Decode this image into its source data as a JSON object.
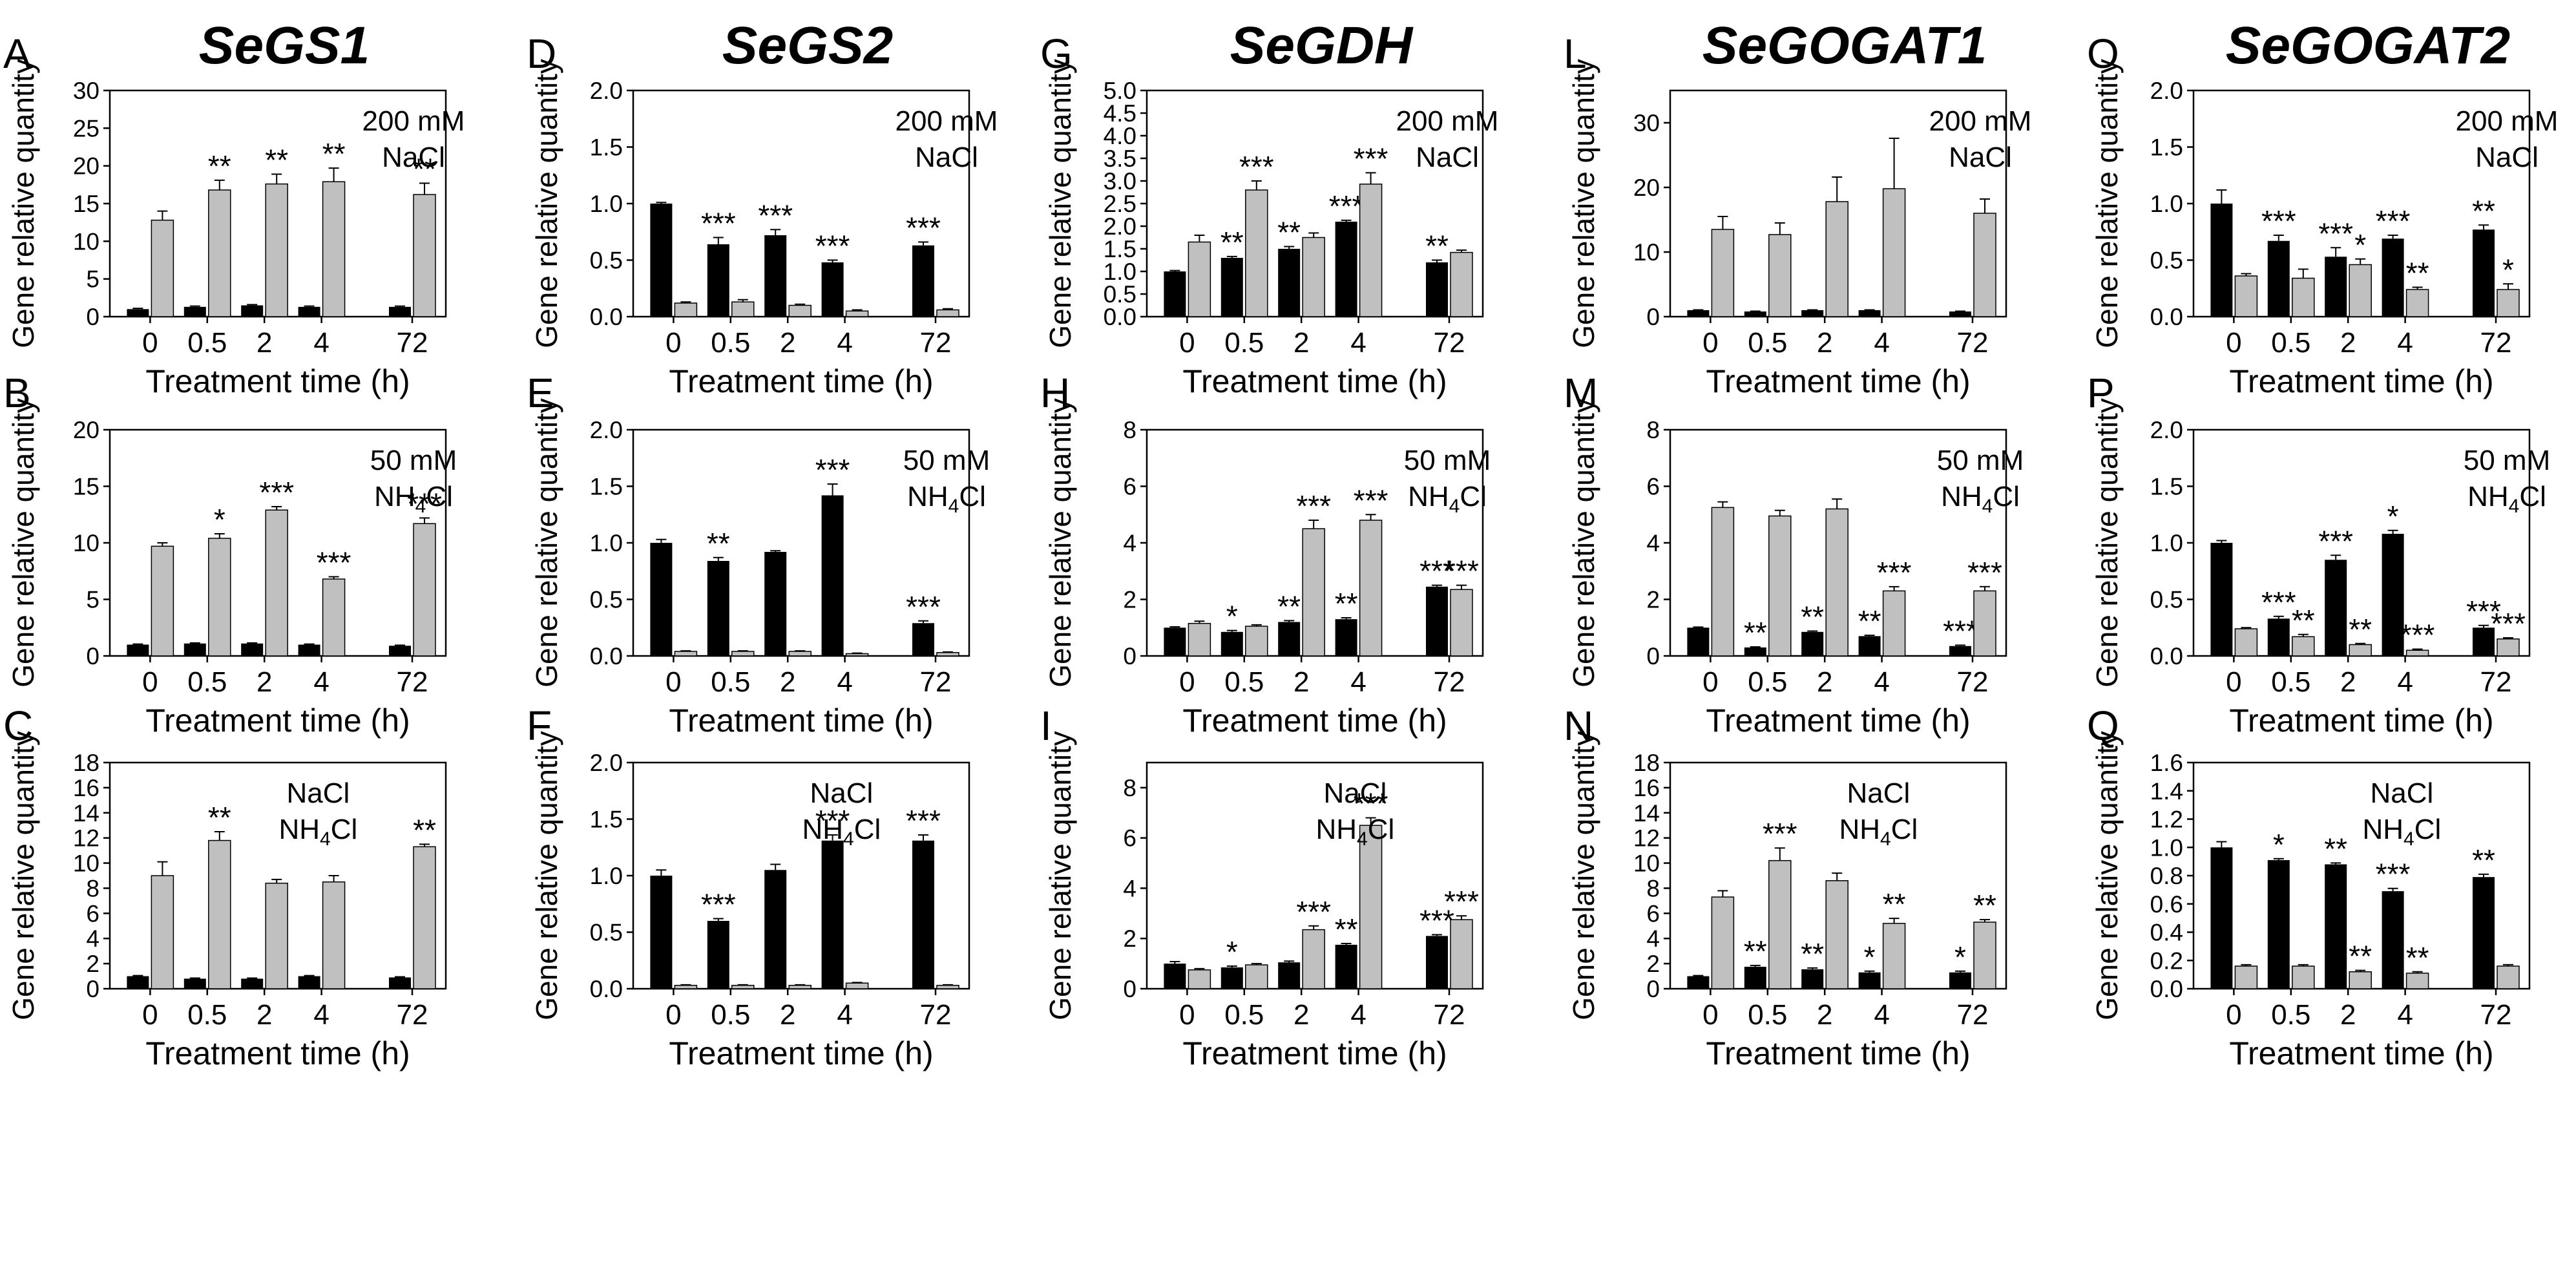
{
  "figure": {
    "x_categories": [
      "0",
      "0.5",
      "2",
      "4",
      "72"
    ],
    "xlabel": "Treatment time (h)",
    "ylabel": "Gene relative quantity",
    "colors": {
      "control": "#000000",
      "treated": "#c0c0c0"
    },
    "genes": [
      "SeGS1",
      "SeGS2",
      "SeGDH",
      "SeGOGAT1",
      "SeGOGAT2"
    ],
    "condition_rows": [
      [
        "200 mM",
        "NaCl"
      ],
      [
        "50 mM",
        "NH4Cl"
      ],
      [
        "NaCl",
        "NH4Cl"
      ]
    ]
  },
  "chart_data": [
    {
      "panel": "A",
      "gene": "SeGS1",
      "condition": "200 mM NaCl",
      "type": "bar",
      "ylim": [
        0,
        30
      ],
      "yticks": [
        0,
        5,
        10,
        15,
        20,
        25,
        30
      ],
      "series": [
        {
          "values": [
            1.0,
            1.3,
            1.5,
            1.3,
            1.3
          ],
          "errors": [
            0.1,
            0.1,
            0.1,
            0.1,
            0.1
          ],
          "sig": [
            "",
            "",
            "",
            "",
            ""
          ]
        },
        {
          "values": [
            12.8,
            16.8,
            17.6,
            17.9,
            16.2
          ],
          "errors": [
            1.2,
            1.3,
            1.3,
            1.8,
            1.5
          ],
          "sig": [
            "",
            "**",
            "**",
            "**",
            "**"
          ]
        }
      ]
    },
    {
      "panel": "B",
      "gene": "SeGS1",
      "condition": "50 mM NH4Cl",
      "type": "bar",
      "ylim": [
        0,
        20
      ],
      "yticks": [
        0,
        5,
        10,
        15,
        20
      ],
      "series": [
        {
          "values": [
            1.0,
            1.1,
            1.1,
            1.0,
            0.9
          ],
          "errors": [
            0.05,
            0.05,
            0.05,
            0.05,
            0.05
          ],
          "sig": [
            "",
            "",
            "",
            "",
            ""
          ]
        },
        {
          "values": [
            9.7,
            10.4,
            12.9,
            6.8,
            11.7
          ],
          "errors": [
            0.3,
            0.4,
            0.3,
            0.2,
            0.5
          ],
          "sig": [
            "",
            "*",
            "***",
            "***",
            "***"
          ]
        }
      ]
    },
    {
      "panel": "C",
      "gene": "SeGS1",
      "condition": "NaCl NH4Cl",
      "type": "bar",
      "ylim": [
        0,
        18
      ],
      "yticks": [
        0,
        2,
        4,
        6,
        8,
        10,
        12,
        14,
        16,
        18
      ],
      "series": [
        {
          "values": [
            1.0,
            0.8,
            0.8,
            1.0,
            0.9
          ],
          "errors": [
            0.05,
            0.05,
            0.05,
            0.05,
            0.05
          ],
          "sig": [
            "",
            "",
            "",
            "",
            ""
          ]
        },
        {
          "values": [
            9.0,
            11.8,
            8.4,
            8.5,
            11.3
          ],
          "errors": [
            1.1,
            0.7,
            0.3,
            0.5,
            0.2
          ],
          "sig": [
            "",
            "**",
            "",
            "",
            "**"
          ]
        }
      ]
    },
    {
      "panel": "D",
      "gene": "SeGS2",
      "condition": "200 mM NaCl",
      "type": "bar",
      "ylim": [
        0,
        2.0
      ],
      "yticks": [
        0,
        0.5,
        1.0,
        1.5,
        2.0
      ],
      "series": [
        {
          "values": [
            1.0,
            0.64,
            0.72,
            0.48,
            0.63
          ],
          "errors": [
            0.01,
            0.06,
            0.05,
            0.02,
            0.03
          ],
          "sig": [
            "",
            "***",
            "***",
            "***",
            "***"
          ]
        },
        {
          "values": [
            0.12,
            0.13,
            0.1,
            0.05,
            0.06
          ],
          "errors": [
            0.01,
            0.02,
            0.01,
            0.01,
            0.01
          ],
          "sig": [
            "",
            "",
            "",
            "",
            ""
          ]
        }
      ]
    },
    {
      "panel": "E",
      "gene": "SeGS2",
      "condition": "50 mM NH4Cl",
      "type": "bar",
      "ylim": [
        0,
        2.0
      ],
      "yticks": [
        0,
        0.5,
        1.0,
        1.5,
        2.0
      ],
      "series": [
        {
          "values": [
            1.0,
            0.84,
            0.92,
            1.42,
            0.29
          ],
          "errors": [
            0.03,
            0.03,
            0.01,
            0.1,
            0.02
          ],
          "sig": [
            "",
            "**",
            "",
            "***",
            "***"
          ]
        },
        {
          "values": [
            0.04,
            0.04,
            0.04,
            0.02,
            0.03
          ],
          "errors": [
            0.005,
            0.005,
            0.005,
            0.005,
            0.005
          ],
          "sig": [
            "",
            "",
            "",
            "",
            ""
          ]
        }
      ]
    },
    {
      "panel": "F",
      "gene": "SeGS2",
      "condition": "NaCl NH4Cl",
      "type": "bar",
      "ylim": [
        0,
        2.0
      ],
      "yticks": [
        0,
        0.5,
        1.0,
        1.5,
        2.0
      ],
      "series": [
        {
          "values": [
            1.0,
            0.6,
            1.05,
            1.31,
            1.31
          ],
          "errors": [
            0.05,
            0.02,
            0.05,
            0.05,
            0.05
          ],
          "sig": [
            "",
            "***",
            "",
            "***",
            "***"
          ]
        },
        {
          "values": [
            0.03,
            0.03,
            0.03,
            0.05,
            0.03
          ],
          "errors": [
            0.005,
            0.005,
            0.005,
            0.005,
            0.005
          ],
          "sig": [
            "",
            "",
            "",
            "",
            ""
          ]
        }
      ]
    },
    {
      "panel": "G",
      "gene": "SeGDH",
      "condition": "200 mM NaCl",
      "type": "bar",
      "ylim": [
        0,
        5
      ],
      "yticks": [
        0,
        0.5,
        1,
        1.5,
        2,
        2.5,
        3,
        3.5,
        4,
        4.5,
        5
      ],
      "series": [
        {
          "values": [
            1.0,
            1.3,
            1.5,
            2.1,
            1.2
          ],
          "errors": [
            0.02,
            0.03,
            0.05,
            0.03,
            0.05
          ],
          "sig": [
            "",
            "**",
            "**",
            "***",
            "**"
          ]
        },
        {
          "values": [
            1.65,
            2.8,
            1.75,
            2.93,
            1.42
          ],
          "errors": [
            0.15,
            0.2,
            0.1,
            0.25,
            0.05
          ],
          "sig": [
            "",
            "***",
            "",
            "***",
            ""
          ]
        }
      ]
    },
    {
      "panel": "H",
      "gene": "SeGDH",
      "condition": "50 mM NH4Cl",
      "type": "bar",
      "ylim": [
        0,
        8
      ],
      "yticks": [
        0,
        2,
        4,
        6,
        8
      ],
      "series": [
        {
          "values": [
            1.0,
            0.85,
            1.2,
            1.3,
            2.45
          ],
          "errors": [
            0.03,
            0.05,
            0.05,
            0.05,
            0.05
          ],
          "sig": [
            "",
            "*",
            "**",
            "**",
            "***"
          ]
        },
        {
          "values": [
            1.15,
            1.05,
            4.5,
            4.8,
            2.35
          ],
          "errors": [
            0.08,
            0.05,
            0.3,
            0.2,
            0.15
          ],
          "sig": [
            "",
            "",
            "***",
            "***",
            "***"
          ]
        }
      ]
    },
    {
      "panel": "I",
      "gene": "SeGDH",
      "condition": "NaCl NH4Cl",
      "type": "bar",
      "ylim": [
        0,
        9
      ],
      "yticks": [
        0,
        2,
        4,
        6,
        8
      ],
      "series": [
        {
          "values": [
            1.0,
            0.85,
            1.05,
            1.75,
            2.1
          ],
          "errors": [
            0.08,
            0.05,
            0.05,
            0.05,
            0.05
          ],
          "sig": [
            "",
            "*",
            "",
            "**",
            "***"
          ]
        },
        {
          "values": [
            0.75,
            0.95,
            2.35,
            6.5,
            2.75
          ],
          "errors": [
            0.05,
            0.05,
            0.15,
            0.3,
            0.15
          ],
          "sig": [
            "",
            "",
            "***",
            "***",
            "***"
          ]
        }
      ]
    },
    {
      "panel": "L",
      "gene": "SeGOGAT1",
      "condition": "200 mM NaCl",
      "type": "bar",
      "ylim": [
        0,
        35
      ],
      "yticks": [
        0,
        10,
        20,
        30
      ],
      "series": [
        {
          "values": [
            1.0,
            0.8,
            1.0,
            1.0,
            0.8
          ],
          "errors": [
            0.05,
            0.05,
            0.05,
            0.05,
            0.05
          ],
          "sig": [
            "",
            "",
            "",
            "",
            ""
          ]
        },
        {
          "values": [
            13.5,
            12.7,
            17.8,
            19.8,
            16.0
          ],
          "errors": [
            2.0,
            1.8,
            3.8,
            7.8,
            2.2
          ],
          "sig": [
            "",
            "",
            "",
            "",
            ""
          ]
        }
      ]
    },
    {
      "panel": "M",
      "gene": "SeGOGAT1",
      "condition": "50 mM NH4Cl",
      "type": "bar",
      "ylim": [
        0,
        8
      ],
      "yticks": [
        0,
        2,
        4,
        6,
        8
      ],
      "series": [
        {
          "values": [
            1.0,
            0.3,
            0.85,
            0.7,
            0.35
          ],
          "errors": [
            0.02,
            0.02,
            0.03,
            0.03,
            0.03
          ],
          "sig": [
            "",
            "**",
            "**",
            "**",
            "***"
          ]
        },
        {
          "values": [
            5.25,
            4.95,
            5.2,
            2.3,
            2.3
          ],
          "errors": [
            0.2,
            0.2,
            0.35,
            0.15,
            0.15
          ],
          "sig": [
            "",
            "",
            "",
            "***",
            "***"
          ]
        }
      ]
    },
    {
      "panel": "N",
      "gene": "SeGOGAT1",
      "condition": "NaCl NH4Cl",
      "type": "bar",
      "ylim": [
        0,
        18
      ],
      "yticks": [
        0,
        2,
        4,
        6,
        8,
        10,
        12,
        14,
        16,
        18
      ],
      "series": [
        {
          "values": [
            1.0,
            1.75,
            1.55,
            1.3,
            1.3
          ],
          "errors": [
            0.05,
            0.1,
            0.1,
            0.1,
            0.1
          ],
          "sig": [
            "",
            "**",
            "**",
            "*",
            "*"
          ]
        },
        {
          "values": [
            7.3,
            10.2,
            8.6,
            5.2,
            5.3
          ],
          "errors": [
            0.5,
            1.0,
            0.6,
            0.4,
            0.2
          ],
          "sig": [
            "",
            "***",
            "",
            "**",
            "**"
          ]
        }
      ]
    },
    {
      "panel": "O",
      "gene": "SeGOGAT2",
      "condition": "200 mM NaCl",
      "type": "bar",
      "ylim": [
        0,
        2.0
      ],
      "yticks": [
        0,
        0.5,
        1.0,
        1.5,
        2.0
      ],
      "series": [
        {
          "values": [
            1.0,
            0.67,
            0.53,
            0.69,
            0.77
          ],
          "errors": [
            0.12,
            0.05,
            0.08,
            0.03,
            0.04
          ],
          "sig": [
            "",
            "***",
            "***",
            "***",
            "**"
          ]
        },
        {
          "values": [
            0.36,
            0.34,
            0.46,
            0.24,
            0.24
          ],
          "errors": [
            0.02,
            0.08,
            0.05,
            0.02,
            0.05
          ],
          "sig": [
            "",
            "",
            "*",
            "**",
            "*"
          ]
        }
      ]
    },
    {
      "panel": "P",
      "gene": "SeGOGAT2",
      "condition": "50 mM NH4Cl",
      "type": "bar",
      "ylim": [
        0,
        2.0
      ],
      "yticks": [
        0,
        0.5,
        1.0,
        1.5,
        2.0
      ],
      "series": [
        {
          "values": [
            1.0,
            0.33,
            0.85,
            1.08,
            0.25
          ],
          "errors": [
            0.02,
            0.02,
            0.04,
            0.03,
            0.02
          ],
          "sig": [
            "",
            "***",
            "***",
            "*",
            "***"
          ]
        },
        {
          "values": [
            0.24,
            0.17,
            0.1,
            0.05,
            0.15
          ],
          "errors": [
            0.01,
            0.02,
            0.01,
            0.01,
            0.01
          ],
          "sig": [
            "",
            "**",
            "**",
            "***",
            "***"
          ]
        }
      ]
    },
    {
      "panel": "Q",
      "gene": "SeGOGAT2",
      "condition": "NaCl NH4Cl",
      "type": "bar",
      "ylim": [
        0,
        1.6
      ],
      "yticks": [
        0,
        0.2,
        0.4,
        0.6,
        0.8,
        1.0,
        1.2,
        1.4,
        1.6
      ],
      "series": [
        {
          "values": [
            1.0,
            0.91,
            0.88,
            0.69,
            0.79
          ],
          "errors": [
            0.04,
            0.01,
            0.01,
            0.02,
            0.02
          ],
          "sig": [
            "",
            "*",
            "**",
            "***",
            "**"
          ]
        },
        {
          "values": [
            0.16,
            0.16,
            0.12,
            0.11,
            0.16
          ],
          "errors": [
            0.01,
            0.01,
            0.01,
            0.01,
            0.01
          ],
          "sig": [
            "",
            "",
            "**",
            "**",
            ""
          ]
        }
      ]
    }
  ]
}
